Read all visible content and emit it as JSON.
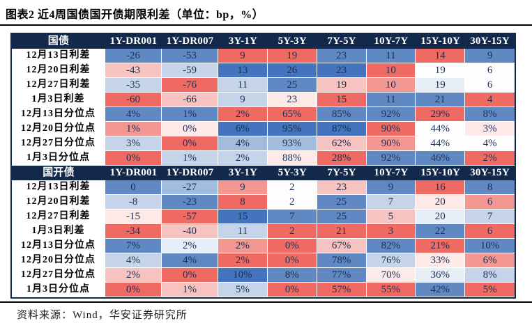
{
  "title": "图表2 近4周国债国开债期限利差（单位：bp，%）",
  "footer": "资料来源：Wind，华安证券研究所",
  "palette": {
    "header_bg": "#13294b",
    "header_text": "#ffffff",
    "value_text": "#1b2f54",
    "label_text": "#000000",
    "R3": "#ee6a63",
    "R2": "#f39792",
    "R1": "#f7c3c0",
    "R0": "#fce9e8",
    "W": "#fdfdfe",
    "B0": "#e7eef7",
    "B1": "#c5d4e9",
    "B2": "#a2bcde",
    "B3": "#6089c4",
    "B4": "#4374bd"
  },
  "chart_data": {
    "type": "table",
    "title": "图表2 近4周国债国开债期限利差（单位：bp，%）",
    "columns": [
      "1Y-DR001",
      "1Y-DR007",
      "3Y-1Y",
      "5Y-3Y",
      "7Y-5Y",
      "10Y-7Y",
      "15Y-10Y",
      "30Y-15Y"
    ],
    "sections": [
      {
        "name": "国债",
        "rows": [
          {
            "label": "12月13日利差",
            "cells": [
              [
                "-26",
                "B3"
              ],
              [
                "-53",
                "B3"
              ],
              [
                "9",
                "R3"
              ],
              [
                "19",
                "R3"
              ],
              [
                "23",
                "B3"
              ],
              [
                "11",
                "B3"
              ],
              [
                "14",
                "R3"
              ],
              [
                "9",
                "B3"
              ]
            ]
          },
          {
            "label": "12月20日利差",
            "cells": [
              [
                "-43",
                "R1"
              ],
              [
                "-59",
                "B1"
              ],
              [
                "13",
                "B4"
              ],
              [
                "26",
                "B4"
              ],
              [
                "23",
                "B4"
              ],
              [
                "10",
                "R3"
              ],
              [
                "19",
                "W"
              ],
              [
                "6",
                "W"
              ]
            ]
          },
          {
            "label": "12月27日利差",
            "cells": [
              [
                "-35",
                "B1"
              ],
              [
                "-76",
                "R3"
              ],
              [
                "11",
                "B1"
              ],
              [
                "25",
                "B3"
              ],
              [
                "19",
                "R1"
              ],
              [
                "10",
                "R2"
              ],
              [
                "19",
                "B0"
              ],
              [
                "6",
                "W"
              ]
            ]
          },
          {
            "label": "1月3日利差",
            "cells": [
              [
                "-60",
                "R3"
              ],
              [
                "-66",
                "R1"
              ],
              [
                "9",
                "B1"
              ],
              [
                "23",
                "R0"
              ],
              [
                "15",
                "R3"
              ],
              [
                "11",
                "B3"
              ],
              [
                "21",
                "B3"
              ],
              [
                "4",
                "R3"
              ]
            ]
          },
          {
            "label": "12月13日分位点",
            "cells": [
              [
                "4%",
                "B3"
              ],
              [
                "1%",
                "B3"
              ],
              [
                "2%",
                "R3"
              ],
              [
                "65%",
                "R3"
              ],
              [
                "85%",
                "B3"
              ],
              [
                "92%",
                "B3"
              ],
              [
                "29%",
                "R3"
              ],
              [
                "8%",
                "B3"
              ]
            ]
          },
          {
            "label": "12月20日分位点",
            "cells": [
              [
                "1%",
                "R2"
              ],
              [
                "0%",
                "R0"
              ],
              [
                "6%",
                "B4"
              ],
              [
                "95%",
                "B4"
              ],
              [
                "87%",
                "B4"
              ],
              [
                "90%",
                "R3"
              ],
              [
                "44%",
                "W"
              ],
              [
                "3%",
                "R0"
              ]
            ]
          },
          {
            "label": "12月27日分位点",
            "cells": [
              [
                "3%",
                "B1"
              ],
              [
                "0%",
                "R3"
              ],
              [
                "4%",
                "B2"
              ],
              [
                "93%",
                "B2"
              ],
              [
                "62%",
                "R1"
              ],
              [
                "90%",
                "R2"
              ],
              [
                "44%",
                "W"
              ],
              [
                "4%",
                "W"
              ]
            ]
          },
          {
            "label": "1月3日分位点",
            "cells": [
              [
                "0%",
                "R3"
              ],
              [
                "1%",
                "B1"
              ],
              [
                "2%",
                "B1"
              ],
              [
                "88%",
                "R0"
              ],
              [
                "28%",
                "R3"
              ],
              [
                "92%",
                "B3"
              ],
              [
                "46%",
                "B3"
              ],
              [
                "2%",
                "R3"
              ]
            ]
          }
        ]
      },
      {
        "name": "国开债",
        "rows": [
          {
            "label": "12月13日利差",
            "cells": [
              [
                "0",
                "B3"
              ],
              [
                "-27",
                "B2"
              ],
              [
                "9",
                "R2"
              ],
              [
                "2",
                "W"
              ],
              [
                "23",
                "R1"
              ],
              [
                "9",
                "B3"
              ],
              [
                "16",
                "R3"
              ],
              [
                "8",
                "B3"
              ]
            ]
          },
          {
            "label": "12月20日利差",
            "cells": [
              [
                "-8",
                "B1"
              ],
              [
                "-23",
                "B3"
              ],
              [
                "8",
                "R3"
              ],
              [
                "2",
                "W"
              ],
              [
                "25",
                "B3"
              ],
              [
                "7",
                "B1"
              ],
              [
                "20",
                "R0"
              ],
              [
                "6",
                "R2"
              ]
            ]
          },
          {
            "label": "12月27日利差",
            "cells": [
              [
                "-15",
                "R0"
              ],
              [
                "-57",
                "R3"
              ],
              [
                "15",
                "B4"
              ],
              [
                "7",
                "B3"
              ],
              [
                "25",
                "B3"
              ],
              [
                "5",
                "R1"
              ],
              [
                "20",
                "B0"
              ],
              [
                "7",
                "B1"
              ]
            ]
          },
          {
            "label": "1月3日利差",
            "cells": [
              [
                "-34",
                "R3"
              ],
              [
                "-40",
                "R1"
              ],
              [
                "11",
                "B1"
              ],
              [
                "2",
                "R3"
              ],
              [
                "21",
                "R3"
              ],
              [
                "3",
                "R3"
              ],
              [
                "22",
                "B3"
              ],
              [
                "6",
                "R3"
              ]
            ]
          },
          {
            "label": "12月13日分位点",
            "cells": [
              [
                "7%",
                "B3"
              ],
              [
                "2%",
                "B0"
              ],
              [
                "2%",
                "R2"
              ],
              [
                "0%",
                "R3"
              ],
              [
                "67%",
                "R1"
              ],
              [
                "82%",
                "B3"
              ],
              [
                "21%",
                "R3"
              ],
              [
                "10%",
                "B3"
              ]
            ]
          },
          {
            "label": "12月20日分位点",
            "cells": [
              [
                "4%",
                "B1"
              ],
              [
                "4%",
                "B3"
              ],
              [
                "2%",
                "R3"
              ],
              [
                "0%",
                "R3"
              ],
              [
                "78%",
                "B3"
              ],
              [
                "76%",
                "B1"
              ],
              [
                "33%",
                "R0"
              ],
              [
                "6%",
                "R2"
              ]
            ]
          },
          {
            "label": "12月27日分位点",
            "cells": [
              [
                "2%",
                "R1"
              ],
              [
                "0%",
                "R3"
              ],
              [
                "10%",
                "B4"
              ],
              [
                "8%",
                "B3"
              ],
              [
                "77%",
                "B3"
              ],
              [
                "70%",
                "R0"
              ],
              [
                "36%",
                "B0"
              ],
              [
                "8%",
                "B1"
              ]
            ]
          },
          {
            "label": "1月3日分位点",
            "cells": [
              [
                "0%",
                "R3"
              ],
              [
                "1%",
                "R1"
              ],
              [
                "5%",
                "B1"
              ],
              [
                "0%",
                "R3"
              ],
              [
                "57%",
                "R3"
              ],
              [
                "55%",
                "R3"
              ],
              [
                "42%",
                "B3"
              ],
              [
                "5%",
                "R3"
              ]
            ]
          }
        ]
      }
    ]
  }
}
